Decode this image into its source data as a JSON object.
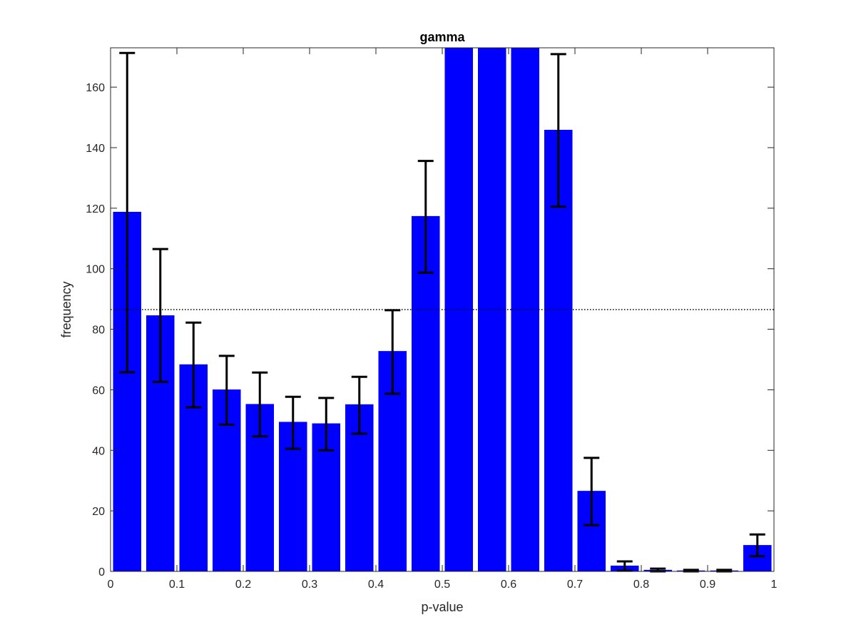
{
  "chart_data": {
    "type": "bar",
    "title": "gamma",
    "xlabel": "p-value",
    "ylabel": "frequency",
    "xlim": [
      0,
      1
    ],
    "ylim": [
      0,
      173
    ],
    "xticks": [
      0,
      0.1,
      0.2,
      0.3,
      0.4,
      0.5,
      0.6,
      0.7,
      0.8,
      0.9,
      1
    ],
    "xtick_labels": [
      "0",
      "0.1",
      "0.2",
      "0.3",
      "0.4",
      "0.5",
      "0.6",
      "0.7",
      "0.8",
      "0.9",
      "1"
    ],
    "yticks": [
      0,
      20,
      40,
      60,
      80,
      100,
      120,
      140,
      160
    ],
    "ytick_labels": [
      "0",
      "20",
      "40",
      "60",
      "80",
      "100",
      "120",
      "140",
      "160"
    ],
    "bin_width": 0.05,
    "bar_width_fraction": 0.85,
    "bins": [
      0.025,
      0.075,
      0.125,
      0.175,
      0.225,
      0.275,
      0.325,
      0.375,
      0.425,
      0.475,
      0.525,
      0.575,
      0.625,
      0.675,
      0.725,
      0.775,
      0.825,
      0.875,
      0.925,
      0.975
    ],
    "values": [
      118.8,
      84.6,
      68.4,
      60.1,
      55.3,
      49.4,
      48.9,
      55.2,
      72.8,
      117.4,
      173,
      173,
      173,
      145.9,
      26.6,
      1.9,
      0.5,
      0.3,
      0.3,
      8.7
    ],
    "error_low": [
      65.8,
      62.6,
      54.2,
      48.5,
      44.6,
      40.5,
      40.0,
      45.5,
      58.7,
      98.7,
      null,
      null,
      null,
      120.5,
      15.3,
      0.2,
      0.0,
      0.0,
      0.0,
      5.0
    ],
    "error_high": [
      171.3,
      106.5,
      82.2,
      71.2,
      65.7,
      57.7,
      57.3,
      64.3,
      86.3,
      135.6,
      null,
      null,
      null,
      170.9,
      37.5,
      3.3,
      0.9,
      0.5,
      0.5,
      12.2
    ],
    "reference_line": 86.5,
    "colors": {
      "bar": "#0000ff",
      "error": "#000000",
      "reference": "#000000"
    },
    "grid": false,
    "legend": null
  }
}
